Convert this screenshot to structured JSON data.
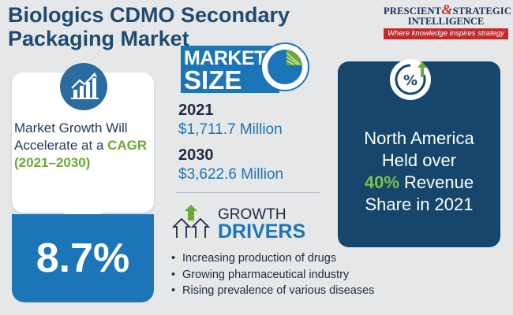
{
  "title": "Biologics CDMO Secondary Packaging Market",
  "logo": {
    "line1_part1": "PRESCIENT",
    "line1_amp": "&",
    "line1_part2": "STRATEGIC",
    "line2": "INTELLIGENCE",
    "tagline": "Where knowledge inspires strategy"
  },
  "growth": {
    "text_prefix": "Market Growth Will Accelerate at a ",
    "cagr_label": "CAGR",
    "years": "(2021–2030)",
    "cagr_value": "8.7%"
  },
  "market_size": {
    "heading_line1": "MARKET",
    "heading_line2": "SIZE",
    "year1": "2021",
    "amount1": "$1,711.7 Million",
    "year2": "2030",
    "amount2": "$3,622.6 Million"
  },
  "growth_drivers": {
    "heading_line1": "GROWTH",
    "heading_line2": "DRIVERS",
    "items": [
      "Increasing production of drugs",
      "Growing pharmaceutical industry",
      "Rising prevalence of various diseases"
    ]
  },
  "region": {
    "line1": "North America",
    "line2": "Held over",
    "pct": "40%",
    "line3_suffix": " Revenue",
    "line4": "Share in 2021"
  },
  "colors": {
    "title": "#1e4a72",
    "accent_blue": "#1b75b7",
    "dark_navy": "#16466b",
    "green": "#6aa935",
    "logo_red": "#c22b2b",
    "background": "#e6e7e9"
  },
  "icons": [
    "chart-growth-icon",
    "pie-chart-icon",
    "growth-arrows-icon",
    "percent-icon"
  ]
}
